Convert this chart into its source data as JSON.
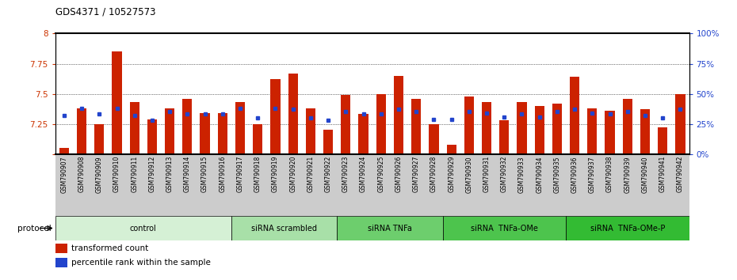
{
  "title": "GDS4371 / 10527573",
  "samples": [
    "GSM790907",
    "GSM790908",
    "GSM790909",
    "GSM790910",
    "GSM790911",
    "GSM790912",
    "GSM790913",
    "GSM790914",
    "GSM790915",
    "GSM790916",
    "GSM790917",
    "GSM790918",
    "GSM790919",
    "GSM790920",
    "GSM790921",
    "GSM790922",
    "GSM790923",
    "GSM790924",
    "GSM790925",
    "GSM790926",
    "GSM790927",
    "GSM790928",
    "GSM790929",
    "GSM790930",
    "GSM790931",
    "GSM790932",
    "GSM790933",
    "GSM790934",
    "GSM790935",
    "GSM790936",
    "GSM790937",
    "GSM790938",
    "GSM790939",
    "GSM790940",
    "GSM790941",
    "GSM790942"
  ],
  "red_values": [
    7.05,
    7.38,
    7.25,
    7.85,
    7.43,
    7.29,
    7.38,
    7.46,
    7.34,
    7.34,
    7.43,
    7.25,
    7.62,
    7.67,
    7.38,
    7.2,
    7.49,
    7.33,
    7.5,
    7.65,
    7.46,
    7.25,
    7.08,
    7.48,
    7.43,
    7.28,
    7.43,
    7.4,
    7.42,
    7.64,
    7.38,
    7.36,
    7.46,
    7.37,
    7.22,
    7.5
  ],
  "blue_percentiles": [
    32,
    38,
    33,
    38,
    32,
    28,
    35,
    33,
    33,
    33,
    38,
    30,
    38,
    37,
    30,
    28,
    35,
    33,
    33,
    37,
    35,
    29,
    29,
    35,
    34,
    31,
    33,
    31,
    35,
    37,
    34,
    33,
    35,
    32,
    30,
    37
  ],
  "groups": [
    {
      "label": "control",
      "start": 0,
      "end": 10,
      "color": "#d5f0d5"
    },
    {
      "label": "siRNA scrambled",
      "start": 10,
      "end": 16,
      "color": "#a8e0a8"
    },
    {
      "label": "siRNA TNFa",
      "start": 16,
      "end": 22,
      "color": "#6dce6d"
    },
    {
      "label": "siRNA  TNFa-OMe",
      "start": 22,
      "end": 29,
      "color": "#4dc44d"
    },
    {
      "label": "siRNA  TNFa-OMe-P",
      "start": 29,
      "end": 36,
      "color": "#33bb33"
    }
  ],
  "ylim_left": [
    7.0,
    8.0
  ],
  "ylim_right": [
    0,
    100
  ],
  "yticks_left": [
    7.0,
    7.25,
    7.5,
    7.75,
    8.0
  ],
  "yticks_right": [
    0,
    25,
    50,
    75,
    100
  ],
  "bar_color": "#cc2200",
  "dot_color": "#2244cc",
  "xlabel_bg": "#cccccc",
  "legend_red": "transformed count",
  "legend_blue": "percentile rank within the sample",
  "protocol_label": "protocol"
}
